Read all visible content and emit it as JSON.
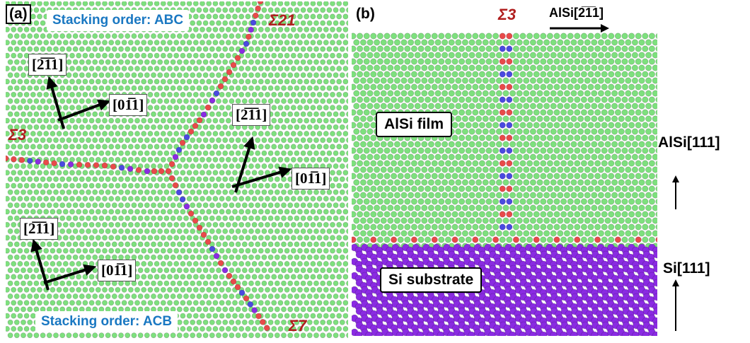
{
  "panel_a": {
    "label": "(a)",
    "stacking_top": "Stacking order: ABC",
    "stacking_bottom": "Stacking order: ACB",
    "sigma_left": "Σ3",
    "sigma_top": "Σ21",
    "sigma_bottom": "Σ7",
    "axes": [
      {
        "a": "[2̅1̅1]",
        "b": "[01̅1]"
      },
      {
        "a": "[2̅1̅1]",
        "b": "[01̅1]"
      },
      {
        "a": "[2̅1̅1]",
        "b": "[01̅1]"
      }
    ]
  },
  "panel_b": {
    "label": "(b)",
    "sigma": "Σ3",
    "top_direction": "AlSi[2̅1̅1]",
    "film_label": "AlSi film",
    "substrate_label": "Si substrate",
    "film_axis": "AlSi[111]",
    "substrate_axis": "Si[111]"
  },
  "colors": {
    "al_atom": "#7ee07e",
    "si_atom": "#8a2be2",
    "boundary_red": "#e84a4a",
    "boundary_blue": "#4a4ae0",
    "sigma_text": "#b01e1e",
    "stacking_text": "#1a78c2"
  }
}
